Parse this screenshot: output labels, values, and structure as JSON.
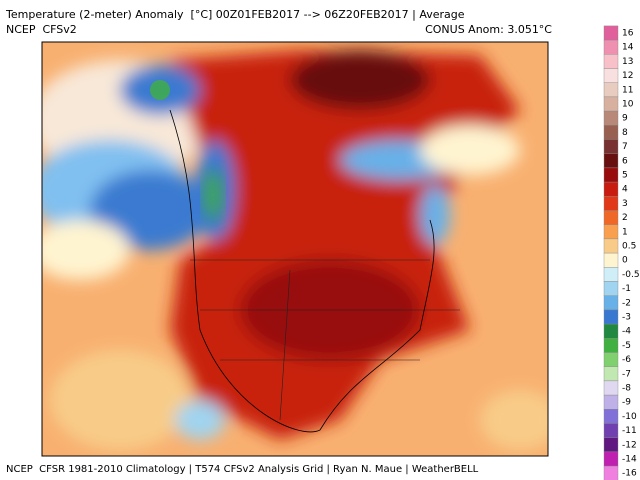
{
  "header": {
    "title": "Temperature (2-meter) Anomaly  [°C] 00Z01FEB2017 --> 06Z20FEB2017 | Average",
    "source": "NCEP  CFSv2",
    "anomaly": "CONUS Anom: 3.051°C"
  },
  "colorbar": {
    "labels": [
      16,
      14,
      13,
      12,
      11,
      10,
      9,
      8,
      7,
      6,
      5,
      4,
      3,
      2,
      1,
      0.5,
      0,
      -0.5,
      -1,
      -2,
      -3,
      -4,
      -5,
      -6,
      -7,
      -8,
      -9,
      -10,
      -11,
      -12,
      -14,
      -16
    ],
    "colors": [
      "#e0609c",
      "#f090b0",
      "#f8c0c8",
      "#f8e0e0",
      "#e8ccc0",
      "#d8b0a0",
      "#b88878",
      "#986050",
      "#783030",
      "#681010",
      "#980c0c",
      "#c81c10",
      "#e03818",
      "#f06828",
      "#f8a050",
      "#f8cc88",
      "#fff4d0",
      "#d0eef8",
      "#a0d4f0",
      "#68b0e8",
      "#3878d0",
      "#208840",
      "#40b040",
      "#80d070",
      "#c0e8b0",
      "#e0d8f0",
      "#c0b0e8",
      "#8070d8",
      "#7040b0",
      "#601880",
      "#c020b0",
      "#f080e0"
    ]
  },
  "footer": "NCEP  CFSR 1981-2010 Climatology | T574 CFSv2 Analysis Grid | Ryan N. Maue | WeatherBELL"
}
